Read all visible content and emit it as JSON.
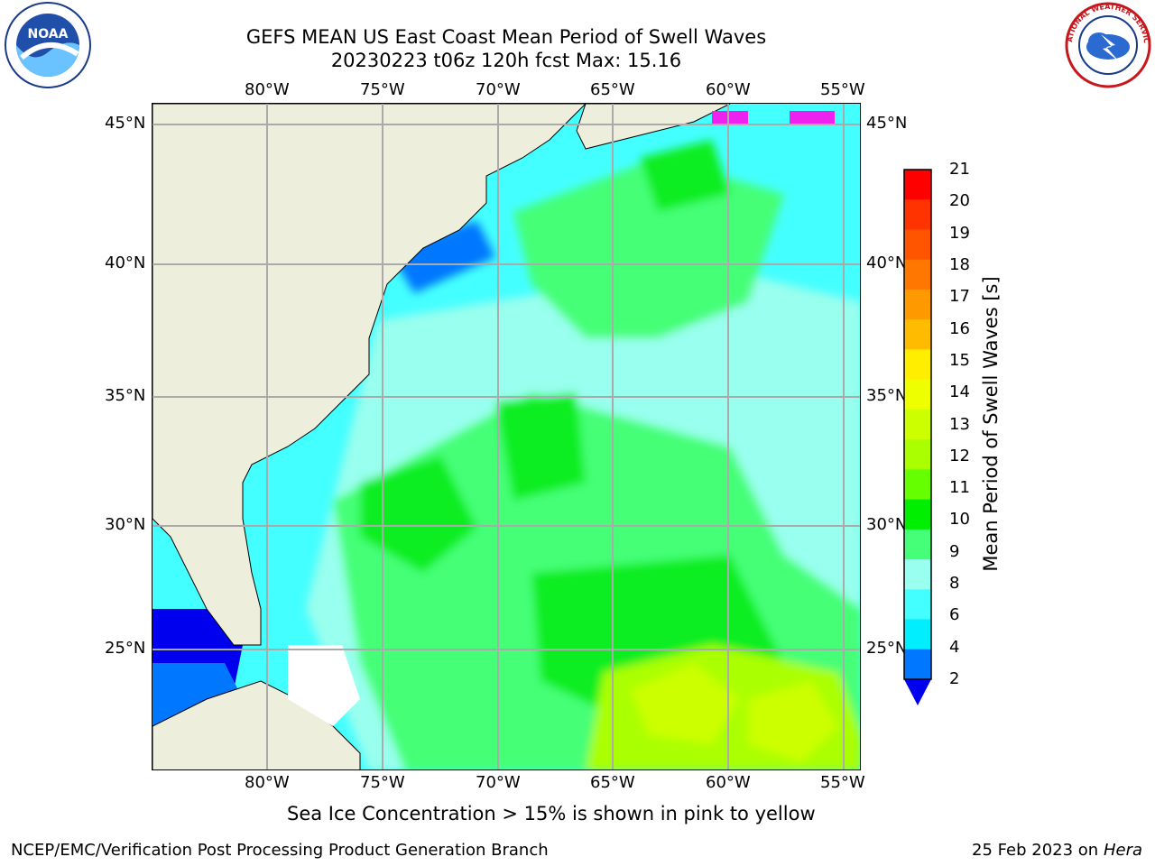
{
  "title": {
    "line1": "GEFS MEAN US East Coast Mean Period of Swell Waves",
    "line2": "20230223 t06z 120h fcst   Max: 15.16"
  },
  "logos": {
    "noaa_text": "NOAA",
    "noaa_ring_text": "NATIONAL OCEANIC AND ATMOSPHERIC ADMINISTRATION · U.S. DEPARTMENT OF COMMERCE",
    "nws_ring_text": "NATIONAL WEATHER SERVICE"
  },
  "map": {
    "lon_labels_top": [
      "80°W",
      "75°W",
      "70°W",
      "65°W",
      "60°W",
      "55°W"
    ],
    "lon_labels_bottom": [
      "80°W",
      "75°W",
      "70°W",
      "65°W",
      "60°W",
      "55°W"
    ],
    "lat_labels_left": [
      "45°N",
      "40°N",
      "35°N",
      "30°N",
      "25°N"
    ],
    "lat_labels_right": [
      "45°N",
      "40°N",
      "35°N",
      "30°N",
      "25°N"
    ],
    "lon_range": [
      -84.7,
      -54.6
    ],
    "lat_range": [
      20.3,
      45.8
    ],
    "gridlines": {
      "lons": [
        -80,
        -75,
        -70,
        -65,
        -60,
        -55
      ],
      "lats": [
        45,
        40,
        35,
        30,
        25
      ]
    },
    "land_color": "#eeeedd",
    "ocean_fill_approx_seconds": "4-14"
  },
  "colorbar": {
    "label": "Mean Period of Swell Waves [s]",
    "ticks": [
      "21",
      "20",
      "19",
      "18",
      "17",
      "16",
      "15",
      "14",
      "13",
      "12",
      "11",
      "10",
      "9",
      "8",
      "6",
      "4",
      "2"
    ],
    "colors_top_to_bottom": [
      "#ff0000",
      "#ff3300",
      "#ff5500",
      "#ff7700",
      "#ff9900",
      "#ffbb00",
      "#ffee00",
      "#eeff00",
      "#ccff00",
      "#aaff00",
      "#66ff00",
      "#00ee00",
      "#44ff77",
      "#99ffee",
      "#44ffff",
      "#00eeff",
      "#0077ff"
    ],
    "extend_color": "#0000ee"
  },
  "note": "Sea Ice Concentration > 15% is shown in pink to yellow",
  "footer": {
    "left": "NCEP/EMC/Verification Post Processing Product Generation Branch",
    "right_date": "25 Feb 2023 on",
    "right_machine": "Hera"
  }
}
